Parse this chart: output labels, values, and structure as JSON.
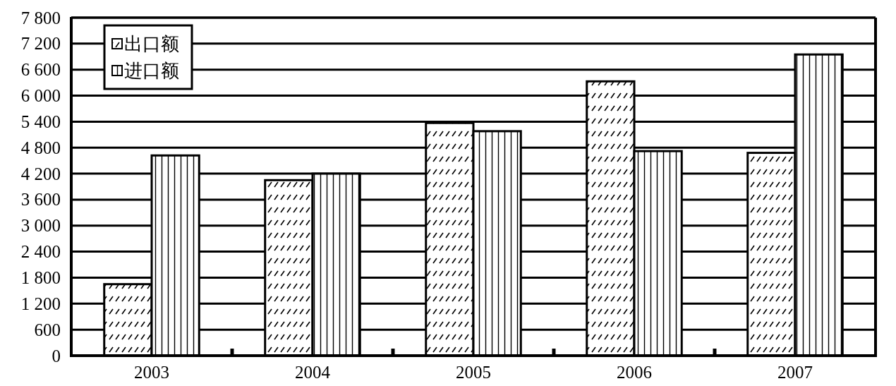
{
  "chart_data": {
    "type": "bar",
    "categories": [
      "2003",
      "2004",
      "2005",
      "2006",
      "2007"
    ],
    "series": [
      {
        "name": "出口额",
        "color": "#000000",
        "values": [
          1650,
          4050,
          5370,
          6330,
          4680
        ]
      },
      {
        "name": "进口额",
        "color": "#000000",
        "values": [
          4620,
          4200,
          5180,
          4720,
          6950
        ]
      }
    ],
    "ylim": [
      0,
      7800
    ],
    "yticks": [
      0,
      {
        "value": 600,
        "label": "600"
      },
      {
        "value": 1200,
        "label": "1 200"
      },
      {
        "value": 1800,
        "label": "1 800"
      },
      {
        "value": 2400,
        "label": "2 400"
      },
      {
        "value": 3000,
        "label": "3 000"
      },
      {
        "value": 3600,
        "label": "3 600"
      },
      {
        "value": 4200,
        "label": "4 200"
      },
      {
        "value": 4800,
        "label": "4 800"
      },
      {
        "value": 5400,
        "label": "5 400"
      },
      {
        "value": 6000,
        "label": "6 000"
      },
      {
        "value": 6600,
        "label": "6 600"
      },
      {
        "value": 7200,
        "label": "7 200"
      },
      {
        "value": 7800,
        "label": "7 800"
      }
    ],
    "grid": "y",
    "legend": "top left"
  }
}
